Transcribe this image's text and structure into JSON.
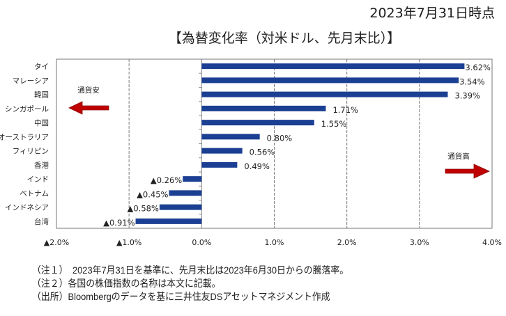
{
  "header": {
    "date_label": "2023年7月31日時点",
    "title": "【為替変化率（対米ドル、先月末比）】"
  },
  "chart_data": {
    "type": "bar",
    "orientation": "horizontal",
    "title": "【為替変化率（対米ドル、先月末比）】",
    "categories": [
      "タイ",
      "マレーシア",
      "韓国",
      "シンガポール",
      "中国",
      "オーストラリア",
      "フィリピン",
      "香港",
      "インド",
      "ベトナム",
      "インドネシア",
      "台湾"
    ],
    "values": [
      3.62,
      3.54,
      3.39,
      1.71,
      1.55,
      0.8,
      0.56,
      0.49,
      -0.26,
      -0.45,
      -0.58,
      -0.91
    ],
    "data_labels": [
      "3.62%",
      "3.54%",
      "3.39%",
      "1.71%",
      "1.55%",
      "0.80%",
      "0.56%",
      "0.49%",
      "▲0.26%",
      "▲0.45%",
      "▲0.58%",
      "▲0.91%"
    ],
    "xlim": [
      -2.0,
      4.0
    ],
    "xticks": [
      -2,
      -1,
      0,
      1,
      2,
      3,
      4
    ],
    "xtick_labels": [
      "▲2.0%",
      "▲1.0%",
      "0.0%",
      "1.0%",
      "2.0%",
      "3.0%",
      "4.0%"
    ],
    "xlabel": "",
    "ylabel": "",
    "grid": "vertical dashed",
    "legend": "none",
    "bar_color": "#1b3f92",
    "annotations": [
      {
        "text": "通貨安",
        "arrow": "left",
        "placement": "upper-left",
        "color": "#c00000"
      },
      {
        "text": "通貨高",
        "arrow": "right",
        "placement": "lower-right",
        "color": "#c00000"
      }
    ]
  },
  "notes": [
    "（注１）　2023年7月31日を基準に、先月末比は2023年6月30日からの騰落率。",
    "（注２）各国の株価指数の名称は本文に記載。",
    "（出所）Bloombergのデータを基に三井住友DSアセットマネジメント作成"
  ]
}
